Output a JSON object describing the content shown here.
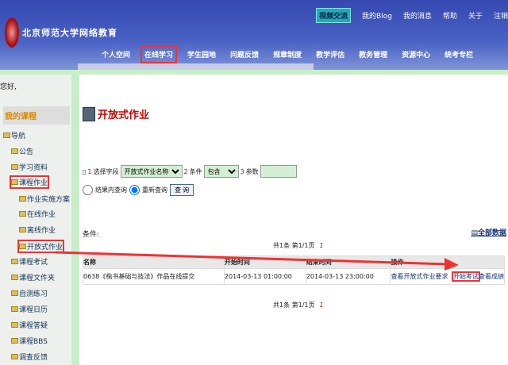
{
  "header": {
    "logo_text": "北京师范大学网络教育",
    "video_label": "视频交流",
    "top_links": [
      "我的Blog",
      "我的消息",
      "帮助",
      "关于",
      "注销"
    ],
    "nav": [
      "个人空间",
      "在线学习",
      "学生园地",
      "问题反馈",
      "规章制度",
      "教学评估",
      "教务管理",
      "资源中心",
      "统考专栏"
    ],
    "nav_selected": "在线学习"
  },
  "sidebar": {
    "greeting": "您好,",
    "my_courses": "我的课程",
    "tree": [
      {
        "label": "导航",
        "level": 0
      },
      {
        "label": "公告",
        "level": 1
      },
      {
        "label": "学习资料",
        "level": 1
      },
      {
        "label": "课程作业",
        "level": 1,
        "expanded": true
      },
      {
        "label": "作业实施方案",
        "level": 2
      },
      {
        "label": "在线作业",
        "level": 2
      },
      {
        "label": "离线作业",
        "level": 2
      },
      {
        "label": "开放式作业",
        "level": 2
      },
      {
        "label": "课程考试",
        "level": 1
      },
      {
        "label": "课程文件夹",
        "level": 1
      },
      {
        "label": "自测练习",
        "level": 1
      },
      {
        "label": "课程日历",
        "level": 1
      },
      {
        "label": "课程答疑",
        "level": 1
      },
      {
        "label": "课程BBS",
        "level": 1
      },
      {
        "label": "调查反馈",
        "level": 1
      }
    ]
  },
  "main": {
    "title": "开放式作业",
    "search": {
      "step1": "1",
      "field_label": "选择字段",
      "field_value": "开放式作业名称",
      "step2": "2",
      "cond_label": "条件",
      "cond_value": "包含",
      "step3": "3",
      "param_label": "参数",
      "param_value": "",
      "radio1": "结果内查询",
      "radio2": "重新查询",
      "radio_selected": "重新查询",
      "query_button": "查 询"
    },
    "condition_label": "条件:",
    "all_data": "全部数据",
    "pager": {
      "text": "共1条  第1/1页",
      "page": "1"
    },
    "columns": [
      "名称",
      "开始时间",
      "结束时间",
      "操作"
    ],
    "rows": [
      {
        "name": "0638《楷书基础与技法》作品在线提交",
        "start": "2014-03-13 01:00:00",
        "end": "2014-03-13 23:00:00",
        "actions": [
          "查看开放式作业要求",
          "开始考试",
          "查看成绩"
        ]
      }
    ]
  },
  "colors": {
    "header": "#3a50b2",
    "highlight": "#e33333",
    "accent": "#cc0000"
  }
}
